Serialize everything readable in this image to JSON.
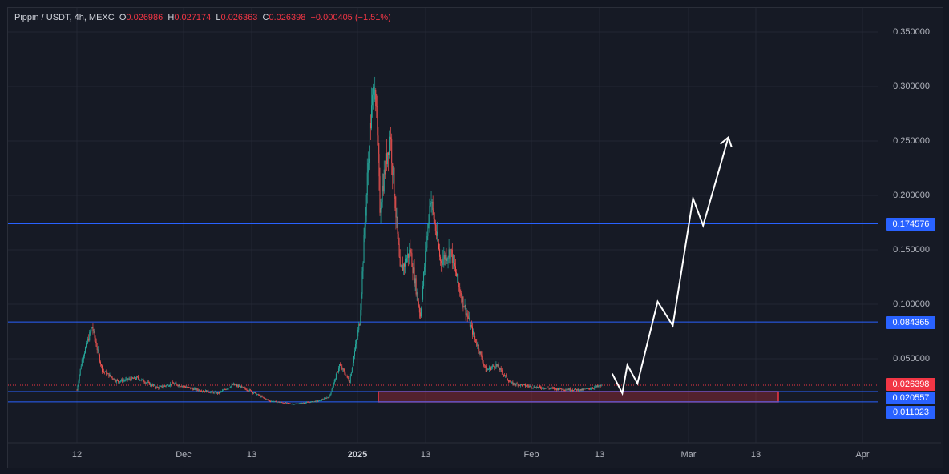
{
  "legend": {
    "symbol": "Pippin / USDT, 4h, MEXC",
    "o_label": "O",
    "o_value": "0.026986",
    "h_label": "H",
    "h_value": "0.027174",
    "l_label": "L",
    "l_value": "0.026363",
    "c_label": "C",
    "c_value": "0.026398",
    "change": "−0.000405 (−1.51%)"
  },
  "colors": {
    "background": "#161a25",
    "grid": "#232733",
    "up": "#26a69a",
    "down": "#ef5350",
    "hline": "#2962ff",
    "zone": "#f23645",
    "projection": "#ffffff",
    "last_price": "#f23645"
  },
  "price_axis": [
    "0.350000",
    "0.300000",
    "0.250000",
    "0.200000",
    "0.150000",
    "0.100000",
    "0.050000"
  ],
  "time_axis": [
    "12",
    "Dec",
    "13",
    "2025",
    "13",
    "Feb",
    "13",
    "Mar",
    "13",
    "Apr"
  ],
  "badges": {
    "level_top": "0.174576",
    "level_mid": "0.084365",
    "last_price": "0.026398",
    "zone_top": "0.020557",
    "zone_bottom": "0.011023"
  },
  "chart_data": {
    "type": "candlestick",
    "symbol": "Pippin / USDT",
    "interval": "4h",
    "exchange": "MEXC",
    "ylim": [
      0,
      0.37
    ],
    "horizontal_levels": [
      0.174576,
      0.084365,
      0.020557,
      0.011023
    ],
    "demand_zone": [
      0.011023,
      0.020557
    ],
    "last_price": 0.026398,
    "projection_points": [
      {
        "date": "Feb 26",
        "price": 0.037
      },
      {
        "date": "Feb 28",
        "price": 0.019
      },
      {
        "date": "Mar 1",
        "price": 0.045
      },
      {
        "date": "Mar 3",
        "price": 0.028
      },
      {
        "date": "Mar 7",
        "price": 0.103
      },
      {
        "date": "Mar 10",
        "price": 0.081
      },
      {
        "date": "Mar 14",
        "price": 0.198
      },
      {
        "date": "Mar 16",
        "price": 0.173
      },
      {
        "date": "Mar 21",
        "price": 0.254
      }
    ],
    "price_path": [
      {
        "date": "Nov 12",
        "price": 0.022
      },
      {
        "date": "Nov 13",
        "price": 0.05
      },
      {
        "date": "Nov 15",
        "price": 0.08
      },
      {
        "date": "Nov 17",
        "price": 0.04
      },
      {
        "date": "Nov 20",
        "price": 0.03
      },
      {
        "date": "Nov 24",
        "price": 0.033
      },
      {
        "date": "Nov 28",
        "price": 0.024
      },
      {
        "date": "Dec 1",
        "price": 0.028
      },
      {
        "date": "Dec 5",
        "price": 0.023
      },
      {
        "date": "Dec 10",
        "price": 0.019
      },
      {
        "date": "Dec 13",
        "price": 0.027
      },
      {
        "date": "Dec 16",
        "price": 0.022
      },
      {
        "date": "Dec 20",
        "price": 0.012
      },
      {
        "date": "Dec 25",
        "price": 0.009
      },
      {
        "date": "Dec 30",
        "price": 0.012
      },
      {
        "date": "Jan 1",
        "price": 0.016
      },
      {
        "date": "Jan 3",
        "price": 0.045
      },
      {
        "date": "Jan 5",
        "price": 0.03
      },
      {
        "date": "Jan 7",
        "price": 0.085
      },
      {
        "date": "Jan 9",
        "price": 0.26
      },
      {
        "date": "Jan 10",
        "price": 0.31
      },
      {
        "date": "Jan 11",
        "price": 0.19
      },
      {
        "date": "Jan 13",
        "price": 0.26
      },
      {
        "date": "Jan 15",
        "price": 0.13
      },
      {
        "date": "Jan 17",
        "price": 0.15
      },
      {
        "date": "Jan 19",
        "price": 0.09
      },
      {
        "date": "Jan 21",
        "price": 0.2
      },
      {
        "date": "Jan 23",
        "price": 0.14
      },
      {
        "date": "Jan 25",
        "price": 0.15
      },
      {
        "date": "Jan 27",
        "price": 0.11
      },
      {
        "date": "Jan 29",
        "price": 0.08
      },
      {
        "date": "Feb 1",
        "price": 0.04
      },
      {
        "date": "Feb 3",
        "price": 0.045
      },
      {
        "date": "Feb 6",
        "price": 0.028
      },
      {
        "date": "Feb 10",
        "price": 0.025
      },
      {
        "date": "Feb 15",
        "price": 0.023
      },
      {
        "date": "Feb 20",
        "price": 0.022
      },
      {
        "date": "Feb 24",
        "price": 0.026
      }
    ]
  }
}
